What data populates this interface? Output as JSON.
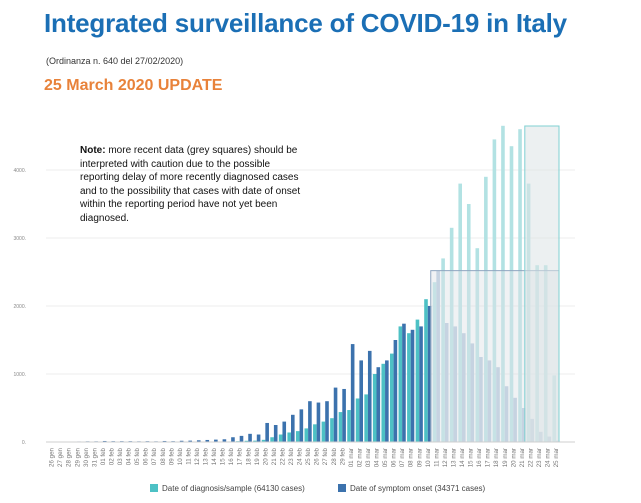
{
  "title": "Integrated surveillance of COVID-19 in Italy",
  "subtitle": "(Ordinanza n. 640 del 27/02/2020)",
  "update": "25 March 2020 UPDATE",
  "note": {
    "label": "Note:",
    "text": " more recent data (grey squares) should be interpreted with caution due to the possible reporting delay of more recently diagnosed cases  and to the possibility that  cases with date of onset within the reporting period have not yet been  diagnosed."
  },
  "colors": {
    "diagnosis": "#4dc1c5",
    "onset": "#3c72ad",
    "diagnosis_recent": "#b2e2e3",
    "onset_recent": "#b3c6dc",
    "grey_box": "#dde3e6"
  },
  "legend": {
    "diagnosis": "Date of diagnosis/sample (64130 cases)",
    "onset": "Date of symptom onset (34371 cases)"
  },
  "chart_data": {
    "type": "bar",
    "title": "",
    "xlabel": "",
    "ylabel": "",
    "ylim": [
      0,
      4800
    ],
    "yticks": [
      "0",
      "1000",
      "2000",
      "3000",
      "4000"
    ],
    "grid": true,
    "categories": [
      "26 gen",
      "27 gen",
      "28 gen",
      "29 gen",
      "30 gen",
      "31 gen",
      "01 feb",
      "02 feb",
      "03 feb",
      "04 feb",
      "05 feb",
      "06 feb",
      "07 feb",
      "08 feb",
      "09 feb",
      "10 feb",
      "11 feb",
      "12 feb",
      "13 feb",
      "14 feb",
      "15 feb",
      "16 feb",
      "17 feb",
      "18 feb",
      "19 feb",
      "20 feb",
      "21 feb",
      "22 feb",
      "23 feb",
      "24 feb",
      "25 feb",
      "26 feb",
      "27 feb",
      "28 feb",
      "29 feb",
      "01 mar",
      "02 mar",
      "03 mar",
      "04 mar",
      "05 mar",
      "06 mar",
      "07 mar",
      "08 mar",
      "09 mar",
      "10 mar",
      "11 mar",
      "12 mar",
      "13 mar",
      "14 mar",
      "15 mar",
      "16 mar",
      "17 mar",
      "18 mar",
      "19 mar",
      "20 mar",
      "21 mar",
      "22 mar",
      "23 mar",
      "24 mar",
      "25 mar"
    ],
    "recent_from": "11 mar",
    "grey_box_diagnosis_from": "22 mar",
    "series": [
      {
        "name": "Date of diagnosis/sample (64130 cases)",
        "values": [
          0,
          0,
          0,
          2,
          1,
          1,
          2,
          0,
          2,
          0,
          0,
          0,
          0,
          0,
          2,
          1,
          1,
          0,
          2,
          4,
          4,
          8,
          12,
          18,
          20,
          32,
          70,
          110,
          140,
          160,
          200,
          260,
          300,
          350,
          440,
          470,
          640,
          700,
          1000,
          1150,
          1300,
          1700,
          1600,
          1800,
          2100,
          2350,
          2700,
          3150,
          3800,
          3500,
          2850,
          3900,
          4450,
          4650,
          4350,
          4600,
          3800,
          2600,
          2600,
          980
        ]
      },
      {
        "name": "Date of symptom onset (34371 cases)",
        "values": [
          5,
          3,
          3,
          8,
          10,
          10,
          15,
          12,
          12,
          12,
          10,
          12,
          10,
          15,
          12,
          18,
          20,
          25,
          30,
          35,
          40,
          70,
          90,
          120,
          110,
          280,
          250,
          300,
          400,
          480,
          600,
          580,
          600,
          800,
          780,
          1440,
          1200,
          1340,
          1100,
          1200,
          1500,
          1740,
          1650,
          1700,
          2000,
          2520,
          1750,
          1700,
          1600,
          1450,
          1250,
          1200,
          1100,
          820,
          650,
          500,
          340,
          150,
          80,
          20
        ]
      }
    ]
  }
}
